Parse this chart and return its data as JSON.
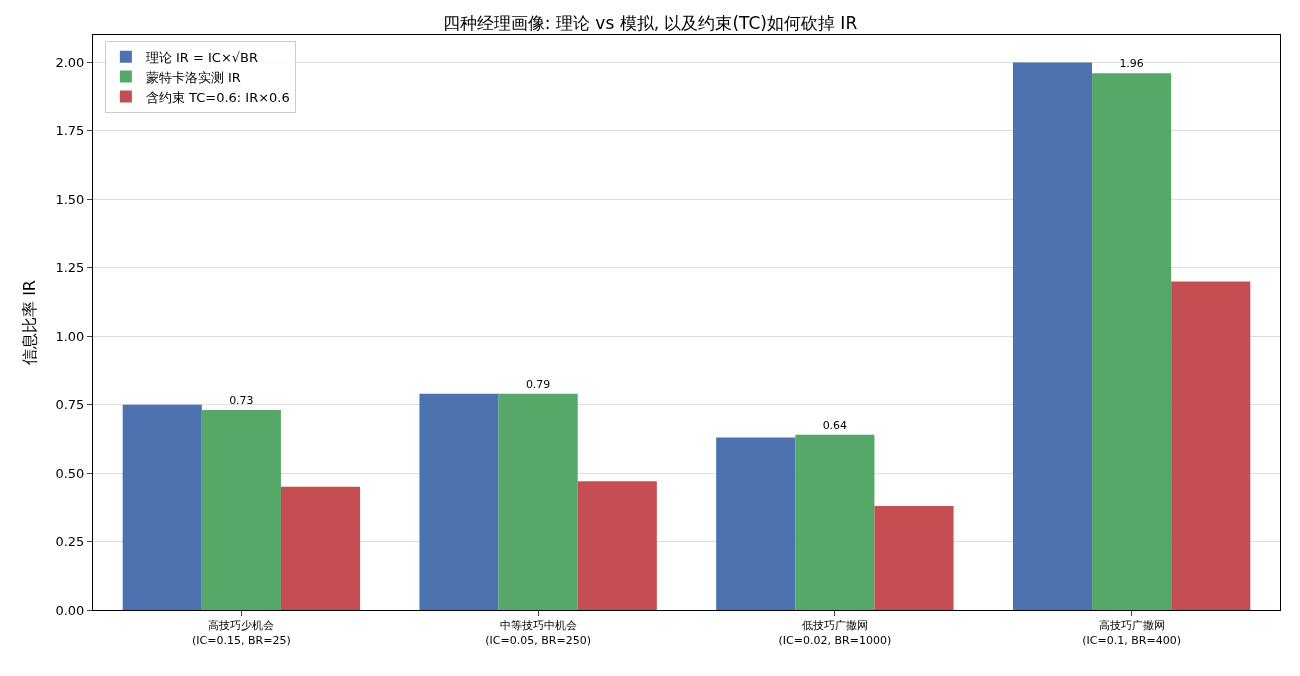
{
  "chart_data": {
    "type": "bar",
    "title": "四种经理画像: 理论 vs 模拟, 以及约束(TC)如何砍掉 IR",
    "ylabel": "信息比率 IR",
    "categories": [
      "高技巧少机会\n(IC=0.15, BR=25)",
      "中等技巧中机会\n(IC=0.05, BR=250)",
      "低技巧广撒网\n(IC=0.02, BR=1000)",
      "高技巧广撒网\n(IC=0.1, BR=400)"
    ],
    "series": [
      {
        "name": "理论 IR = IC×√BR",
        "color": "#4c72b0",
        "values": [
          0.75,
          0.79,
          0.63,
          2.0
        ]
      },
      {
        "name": "蒙特卡洛实测 IR",
        "color": "#55a868",
        "values": [
          0.73,
          0.79,
          0.64,
          1.96
        ],
        "value_labels": [
          "0.73",
          "0.79",
          "0.64",
          "1.96"
        ]
      },
      {
        "name": "含约束 TC=0.6: IR×0.6",
        "color": "#c44e52",
        "values": [
          0.45,
          0.47,
          0.38,
          1.2
        ]
      }
    ],
    "ylim": [
      0,
      2.1
    ],
    "yticks": [
      {
        "value": 0,
        "label": "0.00"
      },
      {
        "value": 0.25,
        "label": "0.25"
      },
      {
        "value": 0.5,
        "label": "0.50"
      },
      {
        "value": 0.75,
        "label": "0.75"
      },
      {
        "value": 1,
        "label": "1.00"
      },
      {
        "value": 1.25,
        "label": "1.25"
      },
      {
        "value": 1.5,
        "label": "1.50"
      },
      {
        "value": 1.75,
        "label": "1.75"
      },
      {
        "value": 2,
        "label": "2.00"
      }
    ],
    "grid": "y",
    "legend": "top left"
  }
}
